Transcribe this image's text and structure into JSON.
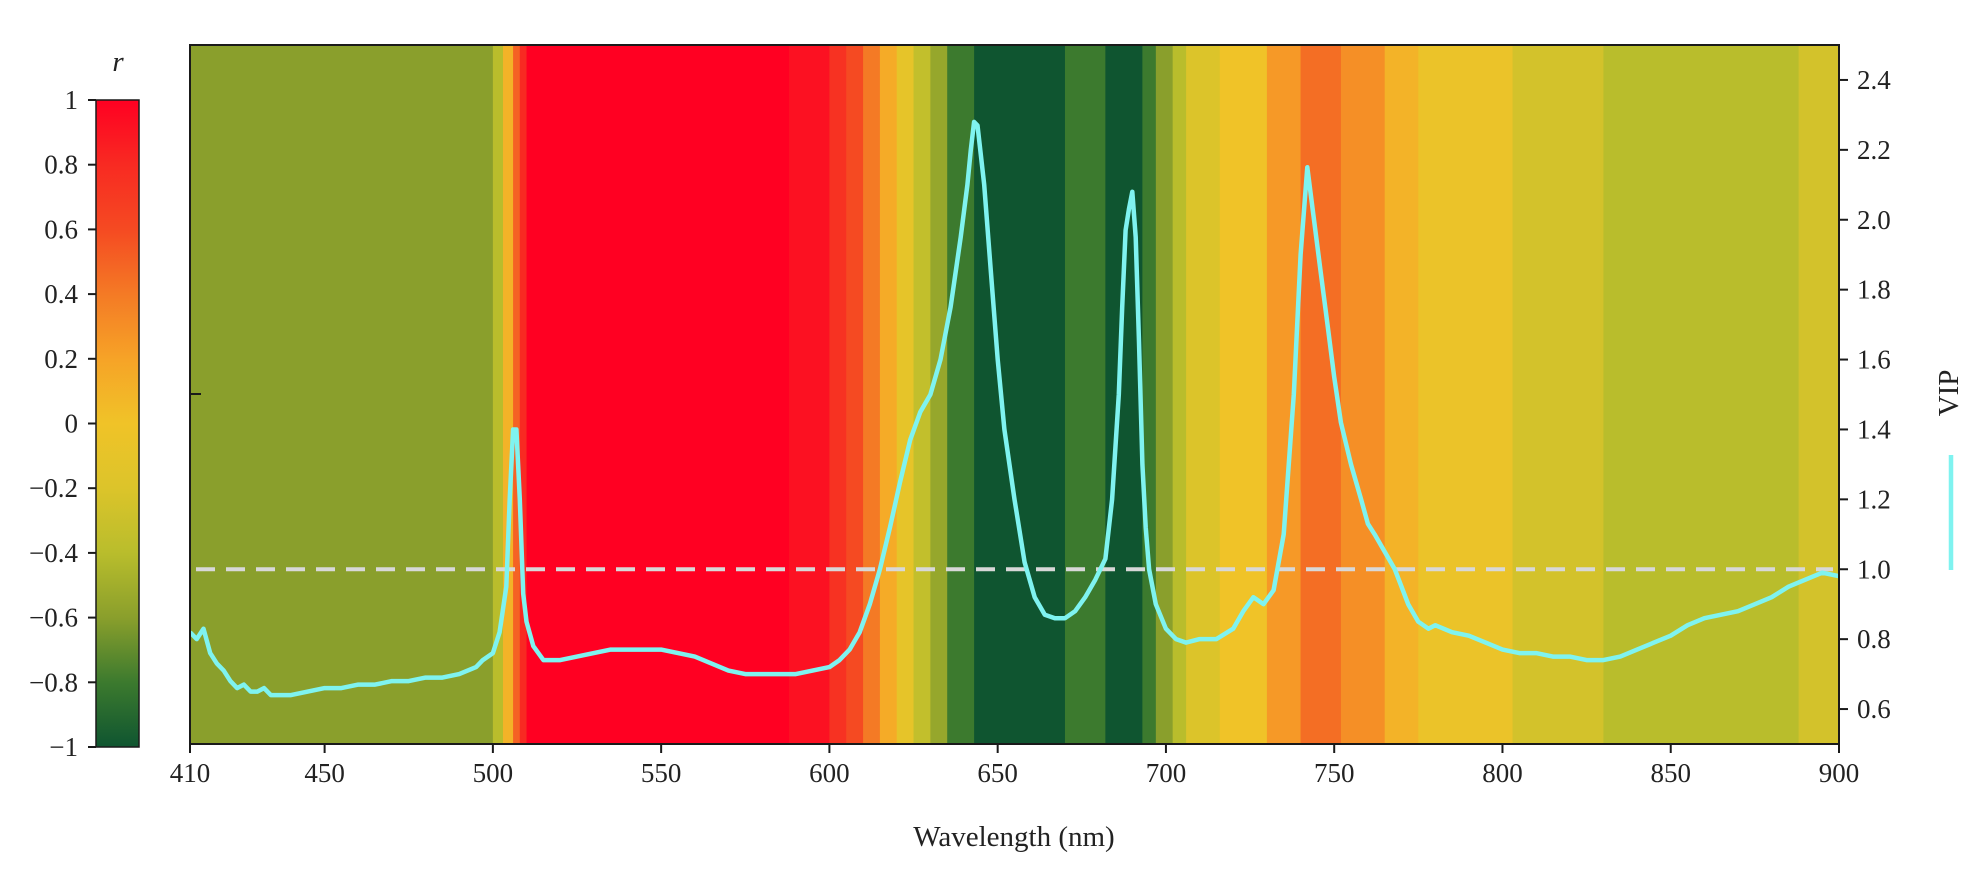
{
  "chart_data": {
    "type": "line",
    "x_label": "Wavelength (nm)",
    "y_right_label": "VIP",
    "colorbar_label": "r",
    "x_ticks": [
      410,
      450,
      500,
      550,
      600,
      650,
      700,
      750,
      800,
      850,
      900
    ],
    "x_range": [
      410,
      900
    ],
    "y_right_ticks": [
      "0.6",
      "0.8",
      "1.0",
      "1.2",
      "1.4",
      "1.6",
      "1.8",
      "2.0",
      "2.2",
      "2.4"
    ],
    "y_right_range": [
      0.5,
      2.5
    ],
    "colorbar_ticks": [
      "1",
      "0.8",
      "0.6",
      "0.4",
      "0.2",
      "0",
      "−0.2",
      "−0.4",
      "−0.6",
      "−0.8",
      "−1"
    ],
    "colorbar_range": [
      -1,
      1
    ],
    "colorbar_stops": [
      {
        "r": -1.0,
        "color": "#0f5530"
      },
      {
        "r": -0.8,
        "color": "#3c7a2e"
      },
      {
        "r": -0.6,
        "color": "#8a9f2c"
      },
      {
        "r": -0.4,
        "color": "#b9bd2c"
      },
      {
        "r": -0.2,
        "color": "#dcc42a"
      },
      {
        "r": 0.0,
        "color": "#f0c328"
      },
      {
        "r": 0.2,
        "color": "#f6a327"
      },
      {
        "r": 0.4,
        "color": "#f47a25"
      },
      {
        "r": 0.6,
        "color": "#f54a22"
      },
      {
        "r": 0.8,
        "color": "#f82a22"
      },
      {
        "r": 1.0,
        "color": "#ff0022"
      }
    ],
    "correlation_bands": [
      {
        "from": 410,
        "to": 500,
        "r": -0.6
      },
      {
        "from": 500,
        "to": 503,
        "r": -0.4
      },
      {
        "from": 503,
        "to": 506,
        "r": 0.1
      },
      {
        "from": 506,
        "to": 508,
        "r": 0.5
      },
      {
        "from": 508,
        "to": 510,
        "r": 0.8
      },
      {
        "from": 510,
        "to": 588,
        "r": 1.0
      },
      {
        "from": 588,
        "to": 600,
        "r": 0.92
      },
      {
        "from": 600,
        "to": 605,
        "r": 0.75
      },
      {
        "from": 605,
        "to": 610,
        "r": 0.6
      },
      {
        "from": 610,
        "to": 615,
        "r": 0.4
      },
      {
        "from": 615,
        "to": 620,
        "r": 0.15
      },
      {
        "from": 620,
        "to": 625,
        "r": -0.1
      },
      {
        "from": 625,
        "to": 630,
        "r": -0.35
      },
      {
        "from": 630,
        "to": 635,
        "r": -0.55
      },
      {
        "from": 635,
        "to": 643,
        "r": -0.8
      },
      {
        "from": 643,
        "to": 670,
        "r": -1.0
      },
      {
        "from": 670,
        "to": 682,
        "r": -0.8
      },
      {
        "from": 682,
        "to": 693,
        "r": -1.0
      },
      {
        "from": 693,
        "to": 697,
        "r": -0.8
      },
      {
        "from": 697,
        "to": 702,
        "r": -0.6
      },
      {
        "from": 702,
        "to": 706,
        "r": -0.4
      },
      {
        "from": 706,
        "to": 716,
        "r": -0.2
      },
      {
        "from": 716,
        "to": 730,
        "r": 0.0
      },
      {
        "from": 730,
        "to": 740,
        "r": 0.25
      },
      {
        "from": 740,
        "to": 752,
        "r": 0.45
      },
      {
        "from": 752,
        "to": 765,
        "r": 0.3
      },
      {
        "from": 765,
        "to": 775,
        "r": 0.1
      },
      {
        "from": 775,
        "to": 803,
        "r": -0.05
      },
      {
        "from": 803,
        "to": 830,
        "r": -0.25
      },
      {
        "from": 830,
        "to": 888,
        "r": -0.4
      },
      {
        "from": 888,
        "to": 900,
        "r": -0.25
      }
    ],
    "threshold": {
      "y": 1.0,
      "style": "dashed",
      "color": "#d8d8d8"
    },
    "series": [
      {
        "line_color": "#7ff3f0",
        "x": [
          410,
          412,
          414,
          416,
          418,
          420,
          422,
          424,
          426,
          428,
          430,
          432,
          434,
          436,
          440,
          445,
          450,
          455,
          460,
          465,
          470,
          475,
          480,
          485,
          490,
          495,
          497,
          500,
          502,
          504,
          505,
          506,
          507,
          508,
          509,
          510,
          512,
          515,
          520,
          525,
          530,
          535,
          540,
          545,
          550,
          555,
          560,
          565,
          570,
          575,
          580,
          585,
          590,
          595,
          600,
          603,
          606,
          609,
          612,
          615,
          618,
          621,
          624,
          627,
          630,
          633,
          636,
          639,
          641,
          642,
          643,
          644,
          646,
          648,
          650,
          652,
          655,
          658,
          661,
          664,
          667,
          670,
          673,
          676,
          679,
          682,
          684,
          686,
          687,
          688,
          689,
          690,
          691,
          692,
          693,
          694,
          695,
          697,
          700,
          703,
          706,
          710,
          715,
          720,
          723,
          726,
          729,
          732,
          735,
          738,
          740,
          742,
          744,
          746,
          748,
          750,
          752,
          755,
          758,
          760,
          762,
          765,
          768,
          770,
          772,
          775,
          778,
          780,
          785,
          790,
          795,
          800,
          805,
          810,
          815,
          820,
          825,
          830,
          835,
          840,
          845,
          850,
          855,
          860,
          865,
          870,
          875,
          880,
          885,
          890,
          895,
          900
        ],
        "y": [
          0.82,
          0.8,
          0.83,
          0.76,
          0.73,
          0.71,
          0.68,
          0.66,
          0.67,
          0.65,
          0.65,
          0.66,
          0.64,
          0.64,
          0.64,
          0.65,
          0.66,
          0.66,
          0.67,
          0.67,
          0.68,
          0.68,
          0.69,
          0.69,
          0.7,
          0.72,
          0.74,
          0.76,
          0.82,
          0.95,
          1.2,
          1.4,
          1.4,
          1.2,
          0.93,
          0.85,
          0.78,
          0.74,
          0.74,
          0.75,
          0.76,
          0.77,
          0.77,
          0.77,
          0.77,
          0.76,
          0.75,
          0.73,
          0.71,
          0.7,
          0.7,
          0.7,
          0.7,
          0.71,
          0.72,
          0.74,
          0.77,
          0.82,
          0.9,
          1.0,
          1.12,
          1.25,
          1.37,
          1.45,
          1.5,
          1.6,
          1.75,
          1.95,
          2.1,
          2.2,
          2.28,
          2.27,
          2.1,
          1.85,
          1.6,
          1.4,
          1.2,
          1.02,
          0.92,
          0.87,
          0.86,
          0.86,
          0.88,
          0.92,
          0.97,
          1.03,
          1.2,
          1.5,
          1.75,
          1.97,
          2.03,
          2.08,
          1.95,
          1.65,
          1.3,
          1.12,
          1.0,
          0.9,
          0.83,
          0.8,
          0.79,
          0.8,
          0.8,
          0.83,
          0.88,
          0.92,
          0.9,
          0.94,
          1.1,
          1.5,
          1.9,
          2.15,
          2.0,
          1.85,
          1.7,
          1.55,
          1.42,
          1.3,
          1.2,
          1.13,
          1.1,
          1.05,
          1.0,
          0.95,
          0.9,
          0.85,
          0.83,
          0.84,
          0.82,
          0.81,
          0.79,
          0.77,
          0.76,
          0.76,
          0.75,
          0.75,
          0.74,
          0.74,
          0.75,
          0.77,
          0.79,
          0.81,
          0.84,
          0.86,
          0.87,
          0.88,
          0.9,
          0.92,
          0.95,
          0.97,
          0.99,
          0.98
        ]
      }
    ]
  }
}
